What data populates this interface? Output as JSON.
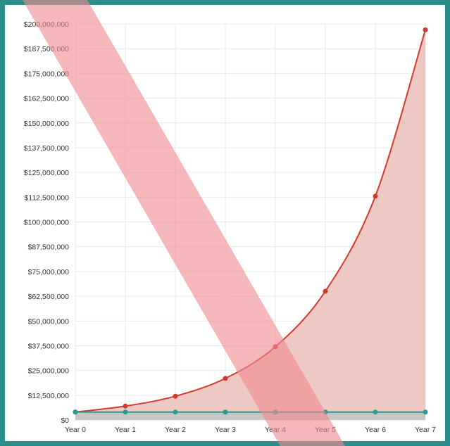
{
  "chart_data": {
    "type": "area",
    "categories": [
      "Year 0",
      "Year 1",
      "Year 2",
      "Year 3",
      "Year 4",
      "Year 5",
      "Year 6",
      "Year 7"
    ],
    "series": [
      {
        "values": [
          4000000,
          7000000,
          12000000,
          21000000,
          37000000,
          65000000,
          113000000,
          197000000
        ],
        "color": "#d23a2f",
        "fill": "#ecc3bd"
      },
      {
        "values": [
          4000000,
          4000000,
          4000000,
          4000000,
          4000000,
          4000000,
          4000000,
          4000000
        ],
        "color": "#2a9a95",
        "fill": "#c8c8c2"
      }
    ],
    "ytick_values": [
      0,
      12500000,
      25000000,
      37500000,
      50000000,
      62500000,
      75000000,
      87500000,
      100000000,
      112500000,
      125000000,
      137500000,
      150000000,
      162500000,
      175000000,
      187500000,
      200000000
    ],
    "ytick_labels": [
      "$0",
      "$12,500,000",
      "$25,000,000",
      "$37,500,000",
      "$50,000,000",
      "$62,500,000",
      "$75,000,000",
      "$87,500,000",
      "$100,000,000",
      "$112,500,000",
      "$125,000,000",
      "$137,500,000",
      "$150,000,000",
      "$162,500,000",
      "$175,000,000",
      "$187,500,000",
      "$200,000,000"
    ],
    "ylim": [
      0,
      200000000
    ],
    "grid": true,
    "legend": "none",
    "overlay_band_color": "#f08a8f",
    "frame_color": "#2a8f8a"
  }
}
